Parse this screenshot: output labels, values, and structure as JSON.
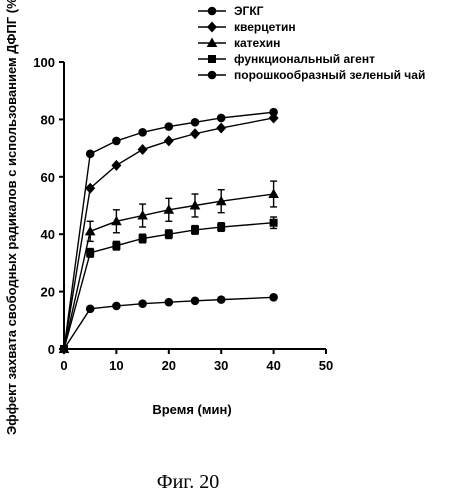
{
  "chart_data": {
    "type": "line",
    "xlabel": "Время (мин)",
    "ylabel": "Эффект захвата свободных радикалов с использованием ДФПГ (%)",
    "xlim": [
      0,
      50
    ],
    "ylim": [
      0,
      100
    ],
    "xticks": [
      0,
      10,
      20,
      30,
      40,
      50
    ],
    "yticks": [
      0,
      20,
      40,
      60,
      80,
      100
    ],
    "grid": false,
    "legend_position": "top-right",
    "series": [
      {
        "name": "ЭГКГ",
        "marker": "circle",
        "x": [
          0,
          5,
          10,
          15,
          20,
          25,
          30,
          40
        ],
        "y": [
          0,
          68,
          72.5,
          75.5,
          77.5,
          79,
          80.5,
          82.5
        ]
      },
      {
        "name": "кверцетин",
        "marker": "diamond",
        "x": [
          0,
          5,
          10,
          15,
          20,
          25,
          30,
          40
        ],
        "y": [
          0,
          56,
          64,
          69.5,
          72.5,
          75,
          77,
          80.5
        ]
      },
      {
        "name": "катехин",
        "marker": "triangle",
        "x": [
          0,
          5,
          10,
          15,
          20,
          25,
          30,
          40
        ],
        "y": [
          0,
          41,
          44.5,
          46.5,
          48.5,
          50,
          51.5,
          54
        ],
        "err": [
          0,
          3.5,
          4,
          4,
          4,
          4,
          4,
          4.5
        ]
      },
      {
        "name": "функциональный агент",
        "marker": "square",
        "x": [
          0,
          5,
          10,
          15,
          20,
          25,
          30,
          40
        ],
        "y": [
          0,
          33.5,
          36,
          38.5,
          40,
          41.5,
          42.5,
          44
        ],
        "err": [
          0,
          1.5,
          1.5,
          1.5,
          1.5,
          1.5,
          1.5,
          2
        ]
      },
      {
        "name": "порошкообразный зеленый чай",
        "marker": "circle",
        "x": [
          0,
          5,
          10,
          15,
          20,
          25,
          30,
          40
        ],
        "y": [
          0,
          14,
          15,
          15.8,
          16.3,
          16.8,
          17.2,
          18
        ]
      }
    ]
  },
  "caption": "Фиг. 20"
}
